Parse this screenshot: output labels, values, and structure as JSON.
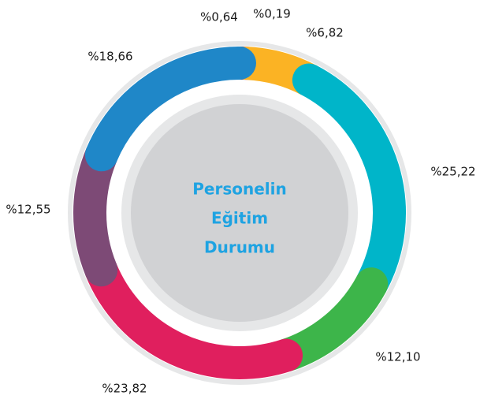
{
  "chart_data": {
    "type": "donut",
    "title": [
      "Personelin",
      "Eğitim",
      "Durumu"
    ],
    "categories": [
      null,
      null,
      null,
      null,
      null,
      null,
      null,
      null
    ],
    "values": [
      0.64,
      0.19,
      6.82,
      25.22,
      12.1,
      23.82,
      12.55,
      18.66
    ],
    "value_labels": [
      "%0,64",
      "%0,19",
      "%6,82",
      "%25,22",
      "%12,10",
      "%23,82",
      "%12,55",
      "%18,66"
    ],
    "colors": [
      "#4d4d4f",
      "#ee7fa1",
      "#fbb324",
      "#00b5c9",
      "#3db54a",
      "#e01f5e",
      "#7d4a76",
      "#1f87c8"
    ]
  }
}
